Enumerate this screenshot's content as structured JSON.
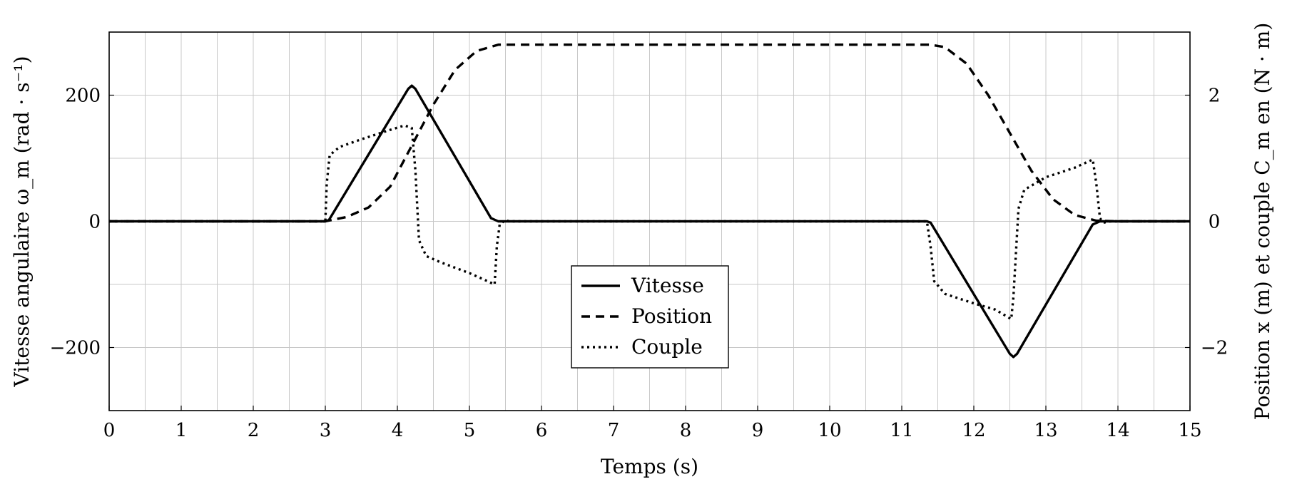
{
  "chart_data": {
    "type": "line",
    "xlabel": "Temps (s)",
    "ylabel_left": "Vitesse angulaire ω_m (rad · s⁻¹)",
    "ylabel_right": "Position x (m) et couple C_m en (N · m)",
    "xlim": [
      0,
      15
    ],
    "ylim_left": [
      -300,
      300
    ],
    "ylim_right": [
      -3,
      3
    ],
    "grid": true,
    "legend_position": "center-bottom",
    "x_ticks": [
      "0",
      "1",
      "2",
      "3",
      "4",
      "5",
      "6",
      "7",
      "8",
      "9",
      "10",
      "11",
      "12",
      "13",
      "14",
      "15"
    ],
    "y_ticks_left": [
      {
        "value": 200,
        "label": "200"
      },
      {
        "value": 0,
        "label": "0"
      },
      {
        "value": -200,
        "label": "−200"
      }
    ],
    "y_ticks_right": [
      {
        "value": 2,
        "label": "2"
      },
      {
        "value": 0,
        "label": "0"
      },
      {
        "value": -2,
        "label": "−2"
      }
    ],
    "series": [
      {
        "name": "Vitesse",
        "axis": "left",
        "style": "solid",
        "points": [
          [
            0,
            0
          ],
          [
            3,
            0
          ],
          [
            3.05,
            2
          ],
          [
            4.15,
            210
          ],
          [
            4.2,
            215
          ],
          [
            4.25,
            210
          ],
          [
            5.3,
            5
          ],
          [
            5.4,
            0
          ],
          [
            11.35,
            0
          ],
          [
            11.4,
            -2
          ],
          [
            12.5,
            -210
          ],
          [
            12.55,
            -215
          ],
          [
            12.6,
            -210
          ],
          [
            13.65,
            -5
          ],
          [
            13.75,
            0
          ],
          [
            15,
            0
          ]
        ]
      },
      {
        "name": "Position",
        "axis": "right",
        "style": "dashed",
        "points": [
          [
            0,
            0
          ],
          [
            3,
            0
          ],
          [
            3.3,
            0.07
          ],
          [
            3.6,
            0.22
          ],
          [
            3.9,
            0.55
          ],
          [
            4.2,
            1.2
          ],
          [
            4.5,
            1.85
          ],
          [
            4.8,
            2.4
          ],
          [
            5.1,
            2.7
          ],
          [
            5.4,
            2.8
          ],
          [
            11.4,
            2.8
          ],
          [
            11.6,
            2.76
          ],
          [
            11.9,
            2.5
          ],
          [
            12.2,
            2.0
          ],
          [
            12.5,
            1.4
          ],
          [
            12.8,
            0.8
          ],
          [
            13.1,
            0.35
          ],
          [
            13.4,
            0.1
          ],
          [
            13.7,
            0.01
          ],
          [
            14,
            0
          ],
          [
            15,
            0
          ]
        ]
      },
      {
        "name": "Couple",
        "axis": "right",
        "style": "dotted",
        "points": [
          [
            0,
            0
          ],
          [
            3,
            0
          ],
          [
            3.02,
            0.6
          ],
          [
            3.06,
            1.05
          ],
          [
            3.2,
            1.18
          ],
          [
            3.5,
            1.3
          ],
          [
            3.9,
            1.45
          ],
          [
            4.1,
            1.52
          ],
          [
            4.2,
            1.48
          ],
          [
            4.25,
            0.8
          ],
          [
            4.3,
            -0.3
          ],
          [
            4.4,
            -0.55
          ],
          [
            4.6,
            -0.65
          ],
          [
            5.0,
            -0.82
          ],
          [
            5.35,
            -1.0
          ],
          [
            5.38,
            -0.4
          ],
          [
            5.42,
            -0.05
          ],
          [
            5.5,
            0.02
          ],
          [
            5.55,
            0
          ],
          [
            11.35,
            0
          ],
          [
            11.4,
            -0.4
          ],
          [
            11.45,
            -0.95
          ],
          [
            11.6,
            -1.15
          ],
          [
            12.0,
            -1.3
          ],
          [
            12.3,
            -1.4
          ],
          [
            12.52,
            -1.55
          ],
          [
            12.55,
            -1.2
          ],
          [
            12.62,
            0.2
          ],
          [
            12.7,
            0.5
          ],
          [
            13.0,
            0.7
          ],
          [
            13.4,
            0.85
          ],
          [
            13.65,
            0.98
          ],
          [
            13.7,
            0.6
          ],
          [
            13.75,
            0.05
          ],
          [
            13.8,
            -0.02
          ],
          [
            13.9,
            0
          ],
          [
            15,
            0
          ]
        ]
      }
    ]
  }
}
